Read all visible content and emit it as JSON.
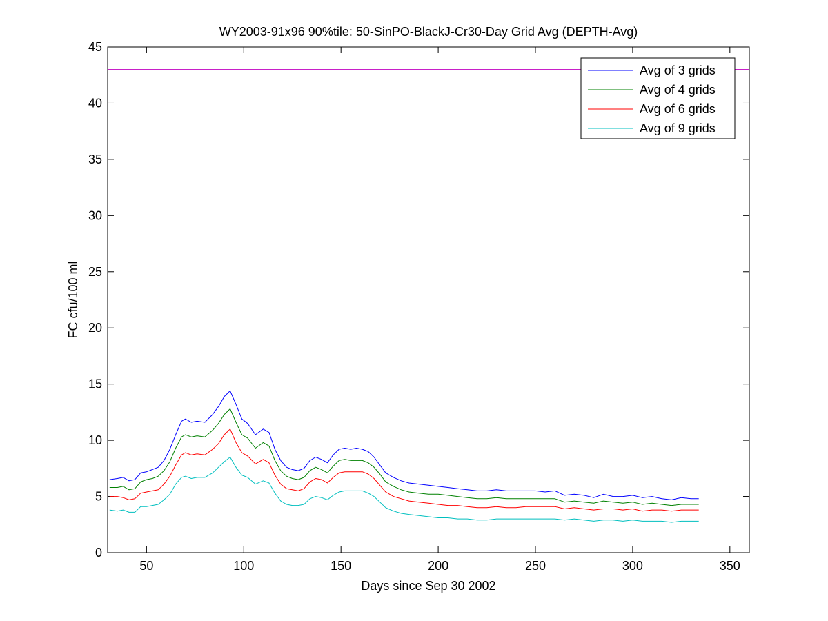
{
  "chart_data": {
    "type": "line",
    "title": "WY2003-91x96 90%tile: 50-SinPO-BlackJ-Cr30-Day Grid Avg (DEPTH-Avg)",
    "xlabel": "Days since Sep 30 2002",
    "ylabel": "FC cfu/100 ml",
    "xlim": [
      30,
      360
    ],
    "ylim": [
      0,
      45
    ],
    "xticks": [
      50,
      100,
      150,
      200,
      250,
      300,
      350
    ],
    "yticks": [
      0,
      5,
      10,
      15,
      20,
      25,
      30,
      35,
      40,
      45
    ],
    "grid": false,
    "legend_position": "top-right",
    "reference_line": {
      "y": 43,
      "color": "#c000c0"
    },
    "series": [
      {
        "name": "Avg of 3 grids",
        "color": "#0000ff",
        "x": [
          31,
          35,
          38,
          41,
          44,
          47,
          50,
          53,
          56,
          59,
          62,
          65,
          68,
          70,
          73,
          76,
          80,
          84,
          87,
          90,
          93,
          96,
          99,
          102,
          106,
          110,
          113,
          116,
          119,
          122,
          125,
          128,
          131,
          134,
          137,
          140,
          143,
          146,
          149,
          152,
          155,
          158,
          161,
          164,
          167,
          170,
          173,
          177,
          181,
          185,
          190,
          195,
          200,
          205,
          210,
          215,
          220,
          225,
          230,
          235,
          240,
          245,
          250,
          255,
          260,
          265,
          270,
          275,
          280,
          285,
          290,
          295,
          300,
          305,
          310,
          315,
          320,
          325,
          330,
          334
        ],
        "values": [
          6.5,
          6.6,
          6.7,
          6.4,
          6.5,
          7.1,
          7.2,
          7.4,
          7.6,
          8.2,
          9.2,
          10.5,
          11.7,
          11.9,
          11.6,
          11.7,
          11.6,
          12.3,
          13.0,
          13.9,
          14.4,
          13.2,
          11.9,
          11.5,
          10.5,
          11.0,
          10.7,
          9.2,
          8.2,
          7.6,
          7.4,
          7.3,
          7.5,
          8.2,
          8.5,
          8.3,
          8.0,
          8.7,
          9.2,
          9.3,
          9.2,
          9.3,
          9.2,
          9.0,
          8.5,
          7.8,
          7.1,
          6.7,
          6.4,
          6.2,
          6.1,
          6.0,
          5.9,
          5.8,
          5.7,
          5.6,
          5.5,
          5.5,
          5.6,
          5.5,
          5.5,
          5.5,
          5.5,
          5.4,
          5.5,
          5.1,
          5.2,
          5.1,
          4.9,
          5.2,
          5.0,
          5.0,
          5.1,
          4.9,
          5.0,
          4.8,
          4.7,
          4.9,
          4.8,
          4.8
        ]
      },
      {
        "name": "Avg of 4 grids",
        "color": "#008000",
        "x": [
          31,
          35,
          38,
          41,
          44,
          47,
          50,
          53,
          56,
          59,
          62,
          65,
          68,
          70,
          73,
          76,
          80,
          84,
          87,
          90,
          93,
          96,
          99,
          102,
          106,
          110,
          113,
          116,
          119,
          122,
          125,
          128,
          131,
          134,
          137,
          140,
          143,
          146,
          149,
          152,
          155,
          158,
          161,
          164,
          167,
          170,
          173,
          177,
          181,
          185,
          190,
          195,
          200,
          205,
          210,
          215,
          220,
          225,
          230,
          235,
          240,
          245,
          250,
          255,
          260,
          265,
          270,
          275,
          280,
          285,
          290,
          295,
          300,
          305,
          310,
          315,
          320,
          325,
          330,
          334
        ],
        "values": [
          5.8,
          5.8,
          5.9,
          5.6,
          5.7,
          6.3,
          6.5,
          6.6,
          6.8,
          7.3,
          8.1,
          9.3,
          10.3,
          10.5,
          10.3,
          10.4,
          10.3,
          10.9,
          11.5,
          12.3,
          12.8,
          11.6,
          10.5,
          10.2,
          9.3,
          9.8,
          9.5,
          8.2,
          7.3,
          6.8,
          6.6,
          6.5,
          6.7,
          7.3,
          7.6,
          7.4,
          7.1,
          7.7,
          8.2,
          8.3,
          8.2,
          8.2,
          8.2,
          8.0,
          7.6,
          7.0,
          6.3,
          5.9,
          5.6,
          5.4,
          5.3,
          5.2,
          5.2,
          5.1,
          5.0,
          4.9,
          4.8,
          4.8,
          4.9,
          4.8,
          4.8,
          4.8,
          4.8,
          4.8,
          4.8,
          4.5,
          4.6,
          4.5,
          4.4,
          4.6,
          4.5,
          4.4,
          4.5,
          4.3,
          4.4,
          4.3,
          4.2,
          4.3,
          4.3,
          4.3
        ]
      },
      {
        "name": "Avg of 6 grids",
        "color": "#ff0000",
        "x": [
          31,
          35,
          38,
          41,
          44,
          47,
          50,
          53,
          56,
          59,
          62,
          65,
          68,
          70,
          73,
          76,
          80,
          84,
          87,
          90,
          93,
          96,
          99,
          102,
          106,
          110,
          113,
          116,
          119,
          122,
          125,
          128,
          131,
          134,
          137,
          140,
          143,
          146,
          149,
          152,
          155,
          158,
          161,
          164,
          167,
          170,
          173,
          177,
          181,
          185,
          190,
          195,
          200,
          205,
          210,
          215,
          220,
          225,
          230,
          235,
          240,
          245,
          250,
          255,
          260,
          265,
          270,
          275,
          280,
          285,
          290,
          295,
          300,
          305,
          310,
          315,
          320,
          325,
          330,
          334
        ],
        "values": [
          5.0,
          5.0,
          4.9,
          4.7,
          4.8,
          5.3,
          5.4,
          5.5,
          5.6,
          6.1,
          6.8,
          7.8,
          8.7,
          8.9,
          8.7,
          8.8,
          8.7,
          9.2,
          9.7,
          10.5,
          11.0,
          9.8,
          8.9,
          8.6,
          7.9,
          8.3,
          8.0,
          6.9,
          6.1,
          5.7,
          5.6,
          5.5,
          5.7,
          6.3,
          6.6,
          6.5,
          6.2,
          6.7,
          7.1,
          7.2,
          7.2,
          7.2,
          7.2,
          7.0,
          6.6,
          6.0,
          5.4,
          5.0,
          4.8,
          4.6,
          4.5,
          4.4,
          4.3,
          4.2,
          4.2,
          4.1,
          4.0,
          4.0,
          4.1,
          4.0,
          4.0,
          4.1,
          4.1,
          4.1,
          4.1,
          3.9,
          4.0,
          3.9,
          3.8,
          3.9,
          3.9,
          3.8,
          3.9,
          3.7,
          3.8,
          3.8,
          3.7,
          3.8,
          3.8,
          3.8
        ]
      },
      {
        "name": "Avg of 9 grids",
        "color": "#00bfbf",
        "x": [
          31,
          35,
          38,
          41,
          44,
          47,
          50,
          53,
          56,
          59,
          62,
          65,
          68,
          70,
          73,
          76,
          80,
          84,
          87,
          90,
          93,
          96,
          99,
          102,
          106,
          110,
          113,
          116,
          119,
          122,
          125,
          128,
          131,
          134,
          137,
          140,
          143,
          146,
          149,
          152,
          155,
          158,
          161,
          164,
          167,
          170,
          173,
          177,
          181,
          185,
          190,
          195,
          200,
          205,
          210,
          215,
          220,
          225,
          230,
          235,
          240,
          245,
          250,
          255,
          260,
          265,
          270,
          275,
          280,
          285,
          290,
          295,
          300,
          305,
          310,
          315,
          320,
          325,
          330,
          334
        ],
        "values": [
          3.8,
          3.7,
          3.8,
          3.6,
          3.6,
          4.1,
          4.1,
          4.2,
          4.3,
          4.7,
          5.2,
          6.1,
          6.7,
          6.8,
          6.6,
          6.7,
          6.7,
          7.1,
          7.6,
          8.1,
          8.5,
          7.6,
          6.9,
          6.7,
          6.1,
          6.4,
          6.2,
          5.3,
          4.6,
          4.3,
          4.2,
          4.2,
          4.3,
          4.8,
          5.0,
          4.9,
          4.7,
          5.1,
          5.4,
          5.5,
          5.5,
          5.5,
          5.5,
          5.3,
          5.0,
          4.5,
          4.0,
          3.7,
          3.5,
          3.4,
          3.3,
          3.2,
          3.1,
          3.1,
          3.0,
          3.0,
          2.9,
          2.9,
          3.0,
          3.0,
          3.0,
          3.0,
          3.0,
          3.0,
          3.0,
          2.9,
          3.0,
          2.9,
          2.8,
          2.9,
          2.9,
          2.8,
          2.9,
          2.8,
          2.8,
          2.8,
          2.7,
          2.8,
          2.8,
          2.8
        ]
      }
    ]
  }
}
